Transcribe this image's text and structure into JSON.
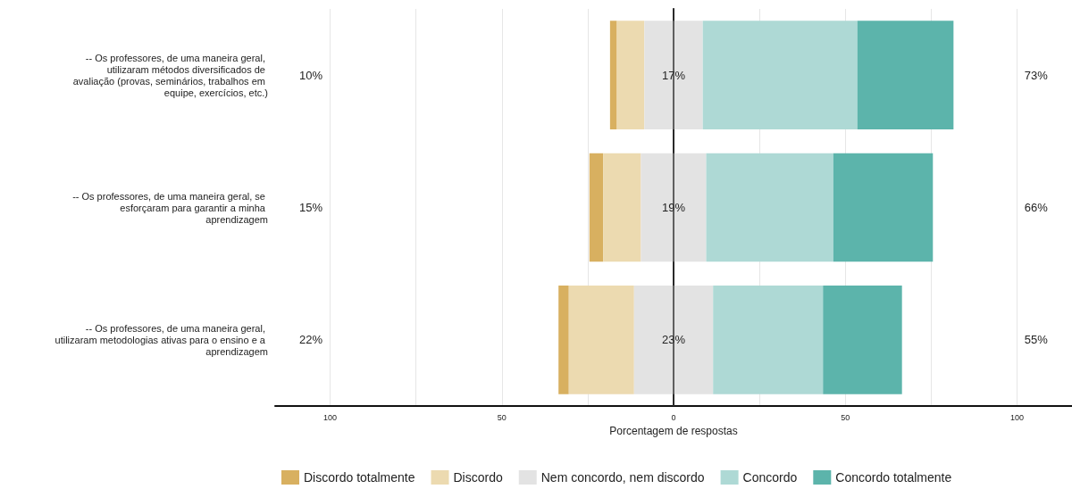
{
  "chart_data": {
    "type": "bar",
    "orientation": "horizontal",
    "xlabel": "Porcentagem de respostas",
    "categories": [
      "-- Os professores, de uma maneira geral, utilizaram métodos diversificados de avaliação (provas, seminários, trabalhos em equipe, exercícios, etc.)",
      "-- Os professores, de uma maneira geral, se esforçaram para garantir a minha aprendizagem",
      "-- Os professores, de uma maneira geral, utilizaram metodologias ativas para o ensino e a aprendizagem"
    ],
    "series": [
      {
        "name": "Discordo totalmente",
        "color": "#d8b060",
        "values": [
          2,
          4,
          3
        ],
        "base": [
          -18.5,
          -24.5,
          -33.5
        ]
      },
      {
        "name": "Discordo",
        "color": "#ecdab0",
        "values": [
          8,
          11,
          19
        ],
        "base": [
          -16.5,
          -20.5,
          -30.5
        ]
      },
      {
        "name": "Nem concordo, nem discordo",
        "color": "#e3e3e3",
        "values": [
          17,
          19,
          23
        ],
        "base": [
          -8.5,
          -9.5,
          -11.5
        ],
        "value_labels": [
          "17%",
          "19%",
          "23%"
        ]
      },
      {
        "name": "Concordo",
        "color": "#aed9d5",
        "values": [
          45,
          37,
          32
        ],
        "base": [
          8.5,
          9.5,
          11.5
        ]
      },
      {
        "name": "Concordo totalmente",
        "color": "#5cb4ab",
        "values": [
          28,
          29,
          23
        ],
        "base": [
          53.5,
          46.5,
          43.5
        ]
      }
    ],
    "xlim": [
      -116,
      116
    ],
    "xticks": [
      {
        "value": -100,
        "label": "100"
      },
      {
        "value": -75,
        "label": null
      },
      {
        "value": -50,
        "label": "50"
      },
      {
        "value": -25,
        "label": null
      },
      0,
      {
        "value": 25,
        "label": null
      },
      50,
      {
        "value": 75,
        "label": null
      },
      100
    ],
    "ref_lines": [
      {
        "axis": "x",
        "value": 0,
        "color": "#333333"
      }
    ],
    "annotations": [
      "10%",
      "15%",
      "22%",
      "73%",
      "66%",
      "55%"
    ],
    "grid": "x",
    "legend": "bottom"
  }
}
